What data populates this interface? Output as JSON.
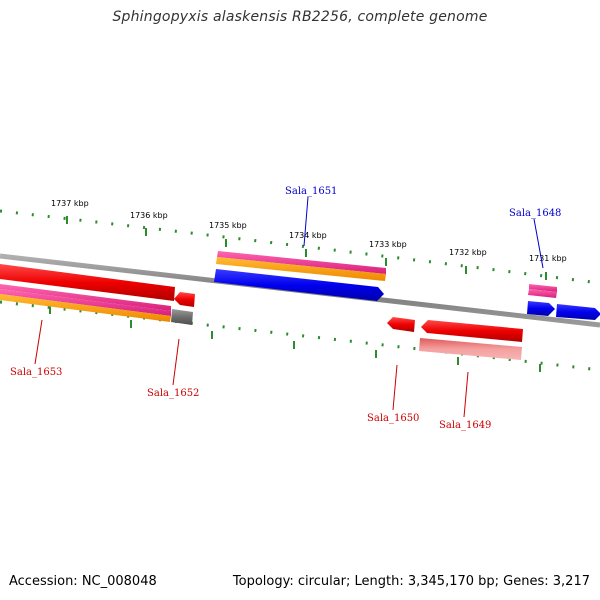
{
  "title": "Sphingopyxis alaskensis RB2256, complete genome",
  "footer": {
    "accession": "Accession: NC_008048",
    "topology": "Topology: circular; Length: 3,345,170 bp; Genes: 3,217"
  },
  "colors": {
    "backbone": "#8a8a8a",
    "tick": "#2e8b2e",
    "forward_label": "#0000cc",
    "reverse_label": "#cc0000",
    "gene_forward": "#0000ee",
    "gene_reverse": "#ee0000",
    "gene_grey": "#707070",
    "gene_pink": "#ee2a8a",
    "gene_orange": "#ff9900",
    "gene_pale_red": "#ee8080"
  },
  "ticks": [
    "1737 kbp",
    "1736 kbp",
    "1735 kbp",
    "1734 kbp",
    "1733 kbp",
    "1732 kbp",
    "1731 kbp"
  ],
  "genes_top": [
    {
      "label": "Sala_1651"
    },
    {
      "label": "Sala_1648"
    }
  ],
  "genes_bottom": [
    {
      "label": "Sala_1653"
    },
    {
      "label": "Sala_1652"
    },
    {
      "label": "Sala_1650"
    },
    {
      "label": "Sala_1649"
    }
  ]
}
